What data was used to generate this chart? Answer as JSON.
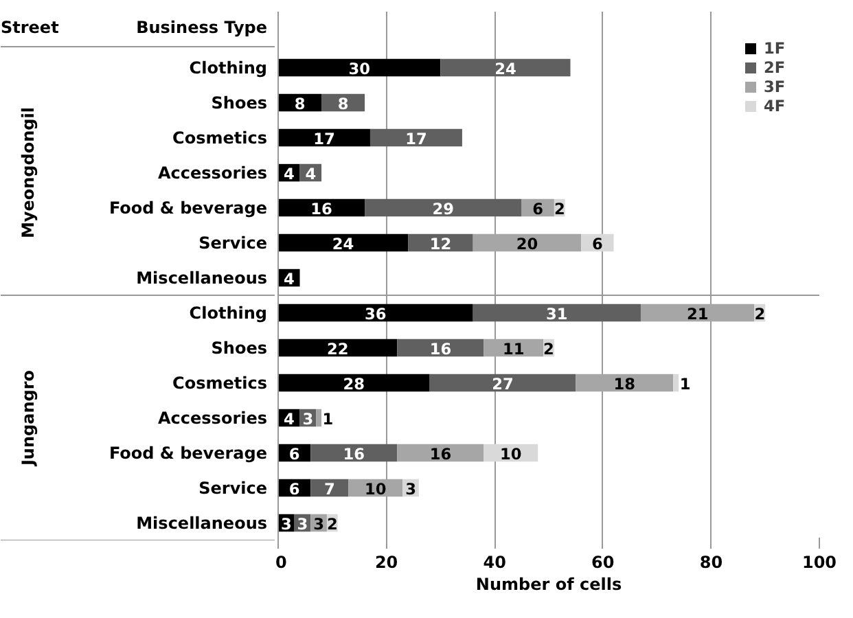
{
  "chart_data": {
    "type": "bar",
    "orientation": "horizontal",
    "stacked": true,
    "data_labels": true,
    "categories": [
      "Clothing",
      "Shoes",
      "Cosmetics",
      "Accessories",
      "Food & beverage",
      "Service",
      "Miscellaneous",
      "Clothing",
      "Shoes",
      "Cosmetics",
      "Accessories",
      "Food & beverage",
      "Service",
      "Miscellaneous"
    ],
    "series": [
      {
        "name": "1F",
        "color": "#000000",
        "values": [
          30,
          8,
          17,
          4,
          16,
          24,
          4,
          36,
          22,
          28,
          4,
          6,
          6,
          3
        ]
      },
      {
        "name": "2F",
        "color": "#606060",
        "values": [
          24,
          8,
          17,
          4,
          29,
          12,
          null,
          31,
          16,
          27,
          3,
          16,
          7,
          3
        ]
      },
      {
        "name": "3F",
        "color": "#a6a6a6",
        "values": [
          null,
          null,
          null,
          null,
          6,
          20,
          null,
          21,
          11,
          18,
          1,
          16,
          10,
          3
        ]
      },
      {
        "name": "4F",
        "color": "#d9d9d9",
        "values": [
          null,
          null,
          null,
          null,
          2,
          6,
          null,
          2,
          2,
          1,
          null,
          10,
          3,
          2
        ]
      }
    ],
    "xlabel": "Number of cells",
    "xlim": [
      0,
      100
    ],
    "xticks": [
      0,
      20,
      40,
      60,
      80,
      100
    ],
    "grid": "x",
    "legend": "top right",
    "annotations": [
      "Street",
      "Business Type",
      "Myeongdongil",
      "Jungangro"
    ]
  }
}
